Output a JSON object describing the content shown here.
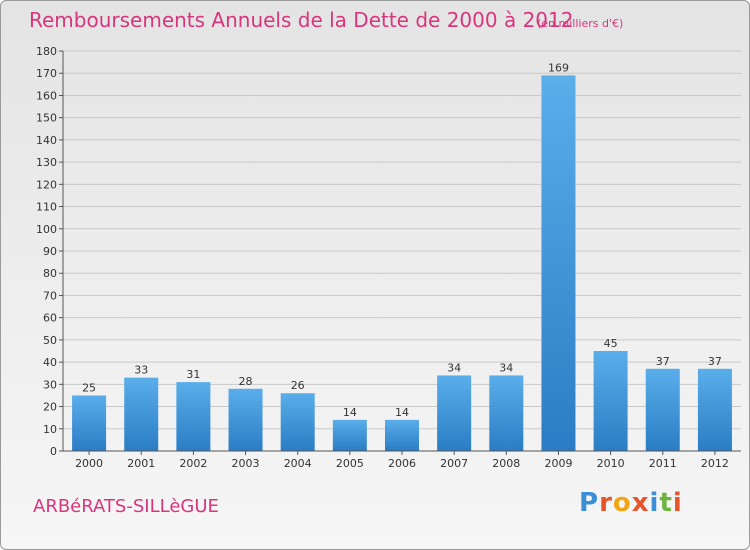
{
  "title": "Remboursements Annuels de la Dette de 2000 à 2012",
  "subtitle": "(en milliers d'€)",
  "commune": "ARBéRATS-SILLèGUE",
  "logo": {
    "letters": [
      "P",
      "r",
      "o",
      "x",
      "i",
      "t",
      "i"
    ],
    "colors": [
      "#3a8fd6",
      "#e8542a",
      "#f2a516",
      "#e8542a",
      "#3a8fd6",
      "#6db33f",
      "#e8542a"
    ]
  },
  "chart_data": {
    "type": "bar",
    "categories": [
      "2000",
      "2001",
      "2002",
      "2003",
      "2004",
      "2005",
      "2006",
      "2007",
      "2008",
      "2009",
      "2010",
      "2011",
      "2012"
    ],
    "values": [
      25,
      33,
      31,
      28,
      26,
      14,
      14,
      34,
      34,
      169,
      45,
      37,
      37
    ],
    "ylim": [
      0,
      180
    ],
    "ytick_step": 10,
    "grid": true,
    "bar_color": "#3b93d9"
  }
}
